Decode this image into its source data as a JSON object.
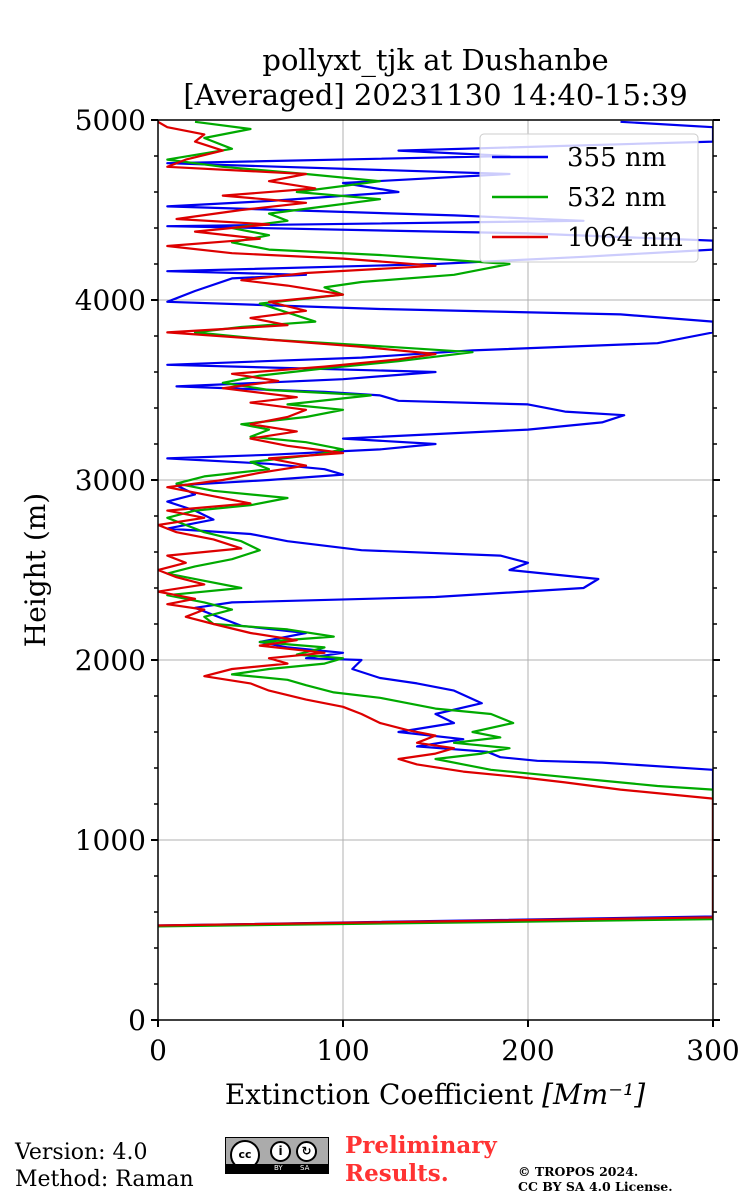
{
  "chart_data": {
    "type": "line",
    "title_line1": "pollyxt_tjk at Dushanbe",
    "title_line2": "[Averaged] 20231130 14:40-15:39",
    "xlabel": "Extinction Coefficient",
    "xlabel_unit": "[Mm⁻¹]",
    "ylabel": "Height (m)",
    "xlim": [
      0,
      300
    ],
    "ylim": [
      0,
      5000
    ],
    "x_ticks": [
      0,
      100,
      200,
      300
    ],
    "x_tick_labels": [
      "0",
      "100",
      "200",
      "300"
    ],
    "y_ticks": [
      0,
      1000,
      2000,
      3000,
      4000,
      5000
    ],
    "y_tick_labels": [
      "0",
      "1000",
      "2000",
      "3000",
      "4000",
      "5000"
    ],
    "grid": true,
    "legend_position": "top-right",
    "series": [
      {
        "name": "355 nm",
        "color": "#0000ee",
        "points": [
          [
            0,
            525
          ],
          [
            300,
            575
          ],
          [
            300,
            1390
          ],
          [
            240,
            1430
          ],
          [
            205,
            1440
          ],
          [
            185,
            1460
          ],
          [
            178,
            1490
          ],
          [
            140,
            1520
          ],
          [
            165,
            1560
          ],
          [
            130,
            1600
          ],
          [
            160,
            1650
          ],
          [
            150,
            1700
          ],
          [
            175,
            1760
          ],
          [
            160,
            1830
          ],
          [
            140,
            1870
          ],
          [
            120,
            1900
          ],
          [
            105,
            1950
          ],
          [
            110,
            2000
          ],
          [
            80,
            2010
          ],
          [
            100,
            2040
          ],
          [
            70,
            2070
          ],
          [
            55,
            2100
          ],
          [
            80,
            2150
          ],
          [
            45,
            2190
          ],
          [
            30,
            2250
          ],
          [
            20,
            2290
          ],
          [
            40,
            2320
          ],
          [
            150,
            2350
          ],
          [
            230,
            2400
          ],
          [
            238,
            2450
          ],
          [
            190,
            2500
          ],
          [
            200,
            2540
          ],
          [
            185,
            2580
          ],
          [
            110,
            2610
          ],
          [
            70,
            2660
          ],
          [
            50,
            2700
          ],
          [
            20,
            2720
          ],
          [
            5,
            2730
          ],
          [
            30,
            2780
          ],
          [
            20,
            2830
          ],
          [
            5,
            2880
          ],
          [
            20,
            2920
          ],
          [
            10,
            2970
          ],
          [
            60,
            3000
          ],
          [
            100,
            3030
          ],
          [
            90,
            3060
          ],
          [
            60,
            3090
          ],
          [
            5,
            3120
          ],
          [
            60,
            3140
          ],
          [
            120,
            3170
          ],
          [
            150,
            3200
          ],
          [
            100,
            3230
          ],
          [
            200,
            3280
          ],
          [
            240,
            3320
          ],
          [
            252,
            3360
          ],
          [
            220,
            3380
          ],
          [
            200,
            3420
          ],
          [
            130,
            3440
          ],
          [
            120,
            3470
          ],
          [
            90,
            3490
          ],
          [
            10,
            3520
          ],
          [
            100,
            3560
          ],
          [
            150,
            3600
          ],
          [
            5,
            3640
          ],
          [
            110,
            3680
          ],
          [
            170,
            3720
          ],
          [
            270,
            3760
          ],
          [
            300,
            3820
          ],
          [
            300,
            3880
          ],
          [
            250,
            3920
          ],
          [
            120,
            3950
          ],
          [
            5,
            3990
          ],
          [
            20,
            4050
          ],
          [
            40,
            4120
          ],
          [
            80,
            4140
          ],
          [
            5,
            4160
          ],
          [
            150,
            4200
          ],
          [
            230,
            4240
          ],
          [
            300,
            4280
          ],
          [
            300,
            4330
          ],
          [
            200,
            4370
          ],
          [
            5,
            4410
          ],
          [
            230,
            4440
          ],
          [
            160,
            4470
          ],
          [
            5,
            4520
          ],
          [
            60,
            4550
          ],
          [
            130,
            4600
          ],
          [
            100,
            4650
          ],
          [
            190,
            4700
          ],
          [
            5,
            4760
          ],
          [
            190,
            4800
          ],
          [
            130,
            4830
          ],
          [
            300,
            4880
          ],
          [
            300,
            4960
          ],
          [
            250,
            4990
          ]
        ]
      },
      {
        "name": "532 nm",
        "color": "#00aa00",
        "points": [
          [
            0,
            520
          ],
          [
            300,
            560
          ],
          [
            300,
            1280
          ],
          [
            270,
            1300
          ],
          [
            240,
            1330
          ],
          [
            210,
            1360
          ],
          [
            180,
            1390
          ],
          [
            165,
            1420
          ],
          [
            150,
            1450
          ],
          [
            175,
            1480
          ],
          [
            190,
            1510
          ],
          [
            160,
            1540
          ],
          [
            185,
            1570
          ],
          [
            170,
            1600
          ],
          [
            192,
            1650
          ],
          [
            180,
            1700
          ],
          [
            150,
            1730
          ],
          [
            135,
            1760
          ],
          [
            120,
            1790
          ],
          [
            95,
            1820
          ],
          [
            80,
            1860
          ],
          [
            70,
            1890
          ],
          [
            40,
            1920
          ],
          [
            60,
            1950
          ],
          [
            90,
            1980
          ],
          [
            100,
            2010
          ],
          [
            75,
            2030
          ],
          [
            90,
            2070
          ],
          [
            55,
            2100
          ],
          [
            95,
            2130
          ],
          [
            70,
            2170
          ],
          [
            30,
            2200
          ],
          [
            25,
            2240
          ],
          [
            40,
            2280
          ],
          [
            25,
            2320
          ],
          [
            5,
            2360
          ],
          [
            45,
            2400
          ],
          [
            25,
            2440
          ],
          [
            5,
            2480
          ],
          [
            20,
            2520
          ],
          [
            40,
            2560
          ],
          [
            55,
            2610
          ],
          [
            45,
            2660
          ],
          [
            25,
            2710
          ],
          [
            15,
            2750
          ],
          [
            5,
            2790
          ],
          [
            20,
            2830
          ],
          [
            50,
            2860
          ],
          [
            70,
            2900
          ],
          [
            30,
            2940
          ],
          [
            10,
            2980
          ],
          [
            25,
            3020
          ],
          [
            60,
            3060
          ],
          [
            50,
            3100
          ],
          [
            85,
            3140
          ],
          [
            100,
            3170
          ],
          [
            80,
            3210
          ],
          [
            50,
            3240
          ],
          [
            60,
            3280
          ],
          [
            45,
            3310
          ],
          [
            80,
            3350
          ],
          [
            100,
            3390
          ],
          [
            70,
            3420
          ],
          [
            115,
            3470
          ],
          [
            60,
            3500
          ],
          [
            35,
            3540
          ],
          [
            55,
            3580
          ],
          [
            90,
            3620
          ],
          [
            130,
            3660
          ],
          [
            170,
            3710
          ],
          [
            125,
            3740
          ],
          [
            60,
            3780
          ],
          [
            20,
            3820
          ],
          [
            45,
            3850
          ],
          [
            85,
            3880
          ],
          [
            70,
            3930
          ],
          [
            55,
            3980
          ],
          [
            100,
            4030
          ],
          [
            90,
            4070
          ],
          [
            110,
            4100
          ],
          [
            160,
            4140
          ],
          [
            190,
            4200
          ],
          [
            120,
            4250
          ],
          [
            60,
            4280
          ],
          [
            40,
            4320
          ],
          [
            60,
            4360
          ],
          [
            40,
            4400
          ],
          [
            70,
            4440
          ],
          [
            60,
            4480
          ],
          [
            90,
            4520
          ],
          [
            120,
            4560
          ],
          [
            75,
            4600
          ],
          [
            120,
            4660
          ],
          [
            80,
            4700
          ],
          [
            35,
            4740
          ],
          [
            5,
            4780
          ],
          [
            40,
            4840
          ],
          [
            25,
            4900
          ],
          [
            50,
            4950
          ],
          [
            20,
            4990
          ]
        ]
      },
      {
        "name": "1064 nm",
        "color": "#dd0000",
        "points": [
          [
            0,
            525
          ],
          [
            300,
            570
          ],
          [
            300,
            1230
          ],
          [
            280,
            1250
          ],
          [
            250,
            1280
          ],
          [
            220,
            1320
          ],
          [
            195,
            1350
          ],
          [
            165,
            1380
          ],
          [
            140,
            1420
          ],
          [
            130,
            1450
          ],
          [
            150,
            1480
          ],
          [
            160,
            1510
          ],
          [
            140,
            1540
          ],
          [
            150,
            1580
          ],
          [
            135,
            1610
          ],
          [
            120,
            1650
          ],
          [
            110,
            1700
          ],
          [
            100,
            1740
          ],
          [
            80,
            1780
          ],
          [
            60,
            1830
          ],
          [
            50,
            1870
          ],
          [
            25,
            1910
          ],
          [
            40,
            1950
          ],
          [
            70,
            1980
          ],
          [
            60,
            2010
          ],
          [
            90,
            2040
          ],
          [
            55,
            2080
          ],
          [
            75,
            2110
          ],
          [
            50,
            2150
          ],
          [
            30,
            2200
          ],
          [
            15,
            2240
          ],
          [
            25,
            2280
          ],
          [
            5,
            2310
          ],
          [
            20,
            2340
          ],
          [
            0,
            2380
          ],
          [
            25,
            2420
          ],
          [
            10,
            2460
          ],
          [
            0,
            2500
          ],
          [
            15,
            2540
          ],
          [
            5,
            2580
          ],
          [
            45,
            2620
          ],
          [
            30,
            2670
          ],
          [
            10,
            2710
          ],
          [
            0,
            2750
          ],
          [
            25,
            2790
          ],
          [
            5,
            2830
          ],
          [
            50,
            2870
          ],
          [
            25,
            2920
          ],
          [
            5,
            2960
          ],
          [
            35,
            3000
          ],
          [
            55,
            3040
          ],
          [
            80,
            3080
          ],
          [
            60,
            3120
          ],
          [
            100,
            3150
          ],
          [
            70,
            3190
          ],
          [
            50,
            3230
          ],
          [
            75,
            3270
          ],
          [
            50,
            3310
          ],
          [
            70,
            3350
          ],
          [
            80,
            3390
          ],
          [
            50,
            3430
          ],
          [
            75,
            3460
          ],
          [
            35,
            3510
          ],
          [
            65,
            3550
          ],
          [
            40,
            3590
          ],
          [
            90,
            3630
          ],
          [
            130,
            3670
          ],
          [
            150,
            3700
          ],
          [
            110,
            3740
          ],
          [
            60,
            3780
          ],
          [
            5,
            3820
          ],
          [
            70,
            3860
          ],
          [
            50,
            3900
          ],
          [
            80,
            3940
          ],
          [
            60,
            3990
          ],
          [
            100,
            4030
          ],
          [
            70,
            4080
          ],
          [
            45,
            4110
          ],
          [
            80,
            4150
          ],
          [
            150,
            4190
          ],
          [
            100,
            4230
          ],
          [
            40,
            4260
          ],
          [
            5,
            4300
          ],
          [
            55,
            4340
          ],
          [
            20,
            4380
          ],
          [
            60,
            4420
          ],
          [
            10,
            4450
          ],
          [
            45,
            4500
          ],
          [
            80,
            4540
          ],
          [
            35,
            4580
          ],
          [
            85,
            4620
          ],
          [
            60,
            4660
          ],
          [
            80,
            4700
          ],
          [
            5,
            4740
          ],
          [
            15,
            4780
          ],
          [
            35,
            4830
          ],
          [
            20,
            4880
          ],
          [
            25,
            4920
          ],
          [
            5,
            4960
          ],
          [
            0,
            4990
          ]
        ]
      }
    ]
  },
  "footer": {
    "version": "Version: 4.0",
    "method": "Method: Raman",
    "preliminary_line1": "Preliminary",
    "preliminary_line2": "Results.",
    "copyright_line1": "© TROPOS 2024.",
    "copyright_line2": "CC BY SA 4.0 License.",
    "badge_cc": "cc",
    "badge_by": "BY",
    "badge_sa": "SA"
  }
}
